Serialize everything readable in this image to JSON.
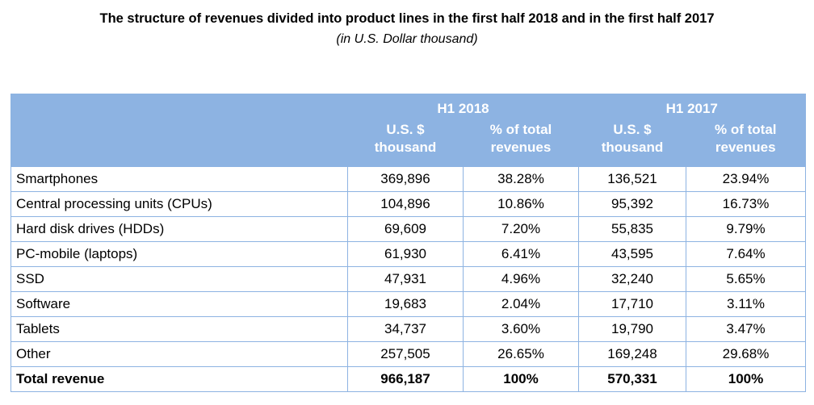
{
  "title": "The structure of revenues divided into product lines in the first half 2018 and in the first half 2017",
  "subtitle": "(in U.S. Dollar thousand)",
  "colors": {
    "header_bg": "#8db3e2",
    "header_text": "#ffffff",
    "border": "#8db3e2"
  },
  "table": {
    "period_headers": [
      "H1 2018",
      "H1 2017"
    ],
    "sub_headers": [
      {
        "line1": "U.S. $",
        "line2": "thousand"
      },
      {
        "line1": "% of total",
        "line2": "revenues"
      },
      {
        "line1": "U.S. $",
        "line2": "thousand"
      },
      {
        "line1": "% of total",
        "line2": "revenues"
      }
    ],
    "rows": [
      {
        "label": "Smartphones",
        "h1_2018_usd": "369,896",
        "h1_2018_pct": "38.28%",
        "h1_2017_usd": "136,521",
        "h1_2017_pct": "23.94%"
      },
      {
        "label": "Central processing units (CPUs)",
        "h1_2018_usd": "104,896",
        "h1_2018_pct": "10.86%",
        "h1_2017_usd": "95,392",
        "h1_2017_pct": "16.73%"
      },
      {
        "label": "Hard disk drives (HDDs)",
        "h1_2018_usd": "69,609",
        "h1_2018_pct": "7.20%",
        "h1_2017_usd": "55,835",
        "h1_2017_pct": "9.79%"
      },
      {
        "label": "PC-mobile (laptops)",
        "h1_2018_usd": "61,930",
        "h1_2018_pct": "6.41%",
        "h1_2017_usd": "43,595",
        "h1_2017_pct": "7.64%"
      },
      {
        "label": "SSD",
        "h1_2018_usd": "47,931",
        "h1_2018_pct": "4.96%",
        "h1_2017_usd": "32,240",
        "h1_2017_pct": "5.65%"
      },
      {
        "label": "Software",
        "h1_2018_usd": "19,683",
        "h1_2018_pct": "2.04%",
        "h1_2017_usd": "17,710",
        "h1_2017_pct": "3.11%"
      },
      {
        "label": "Tablets",
        "h1_2018_usd": "34,737",
        "h1_2018_pct": "3.60%",
        "h1_2017_usd": "19,790",
        "h1_2017_pct": "3.47%"
      },
      {
        "label": "Other",
        "h1_2018_usd": "257,505",
        "h1_2018_pct": "26.65%",
        "h1_2017_usd": "169,248",
        "h1_2017_pct": "29.68%"
      }
    ],
    "total": {
      "label": "Total revenue",
      "h1_2018_usd": "966,187",
      "h1_2018_pct": "100%",
      "h1_2017_usd": "570,331",
      "h1_2017_pct": "100%"
    }
  }
}
